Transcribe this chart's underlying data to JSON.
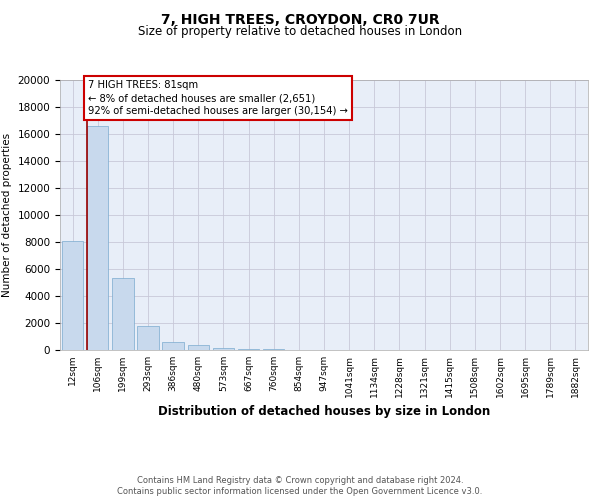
{
  "title": "7, HIGH TREES, CROYDON, CR0 7UR",
  "subtitle": "Size of property relative to detached houses in London",
  "xlabel": "Distribution of detached houses by size in London",
  "ylabel": "Number of detached properties",
  "categories": [
    "12sqm",
    "106sqm",
    "199sqm",
    "293sqm",
    "386sqm",
    "480sqm",
    "573sqm",
    "667sqm",
    "760sqm",
    "854sqm",
    "947sqm",
    "1041sqm",
    "1134sqm",
    "1228sqm",
    "1321sqm",
    "1415sqm",
    "1508sqm",
    "1602sqm",
    "1695sqm",
    "1789sqm",
    "1882sqm"
  ],
  "values": [
    8100,
    16600,
    5300,
    1750,
    600,
    350,
    180,
    90,
    50,
    30,
    15,
    10,
    8,
    5,
    4,
    3,
    2,
    2,
    1,
    1,
    1
  ],
  "bar_color": "#c8d9ed",
  "bar_edge_color": "#7aaacf",
  "red_line_x": 0.575,
  "ylim": [
    0,
    20000
  ],
  "yticks": [
    0,
    2000,
    4000,
    6000,
    8000,
    10000,
    12000,
    14000,
    16000,
    18000,
    20000
  ],
  "background_color": "#e8eef8",
  "annotation_line1": "7 HIGH TREES: 81sqm",
  "annotation_line2": "← 8% of detached houses are smaller (2,651)",
  "annotation_line3": "92% of semi-detached houses are larger (30,154) →",
  "footer_line1": "Contains HM Land Registry data © Crown copyright and database right 2024.",
  "footer_line2": "Contains public sector information licensed under the Open Government Licence v3.0."
}
